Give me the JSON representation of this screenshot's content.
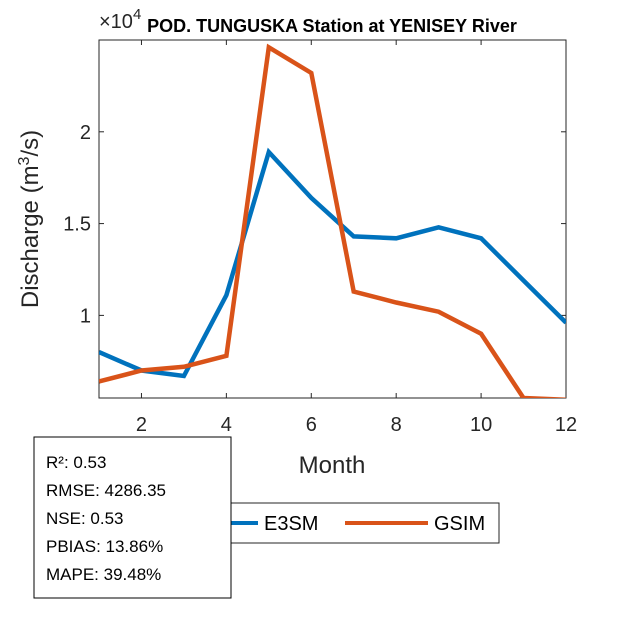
{
  "chart_data": {
    "type": "line",
    "title": "POD. TUNGUSKA  Station at  YENISEY  River",
    "xlabel": "Month",
    "ylabel": "Discharge (m",
    "ylabel_sup": "3",
    "ylabel_tail": "/s)",
    "exponent_base": "×10",
    "exponent_power": "4",
    "x": [
      1,
      2,
      3,
      4,
      5,
      6,
      7,
      8,
      9,
      10,
      11,
      12
    ],
    "xlim": [
      1,
      12
    ],
    "ylim": [
      0.55,
      2.5
    ],
    "scale": 10000,
    "x_ticks": [
      2,
      4,
      6,
      8,
      10,
      12
    ],
    "x_tick_labels": [
      "2",
      "4",
      "6",
      "8",
      "10",
      "12"
    ],
    "y_ticks": [
      1,
      1.5,
      2
    ],
    "y_tick_labels": [
      "1",
      "1.5",
      "2"
    ],
    "series": [
      {
        "name": "E3SM",
        "color": "#0072BD",
        "values": [
          8000,
          7000,
          6700,
          11100,
          18900,
          16400,
          14300,
          14200,
          14800,
          14200,
          11900,
          9600
        ]
      },
      {
        "name": "GSIM",
        "color": "#D95319",
        "values": [
          6400,
          7000,
          7200,
          7800,
          24600,
          23200,
          11300,
          10700,
          10200,
          9000,
          5500,
          5400
        ]
      }
    ],
    "legend": [
      "E3SM",
      "GSIM"
    ],
    "grid": false
  },
  "stats": {
    "r2": "R²: 0.53",
    "rmse": "RMSE: 4286.35",
    "nse": "NSE: 0.53",
    "pbias": "PBIAS: 13.86%",
    "mape": "MAPE: 39.48%"
  }
}
